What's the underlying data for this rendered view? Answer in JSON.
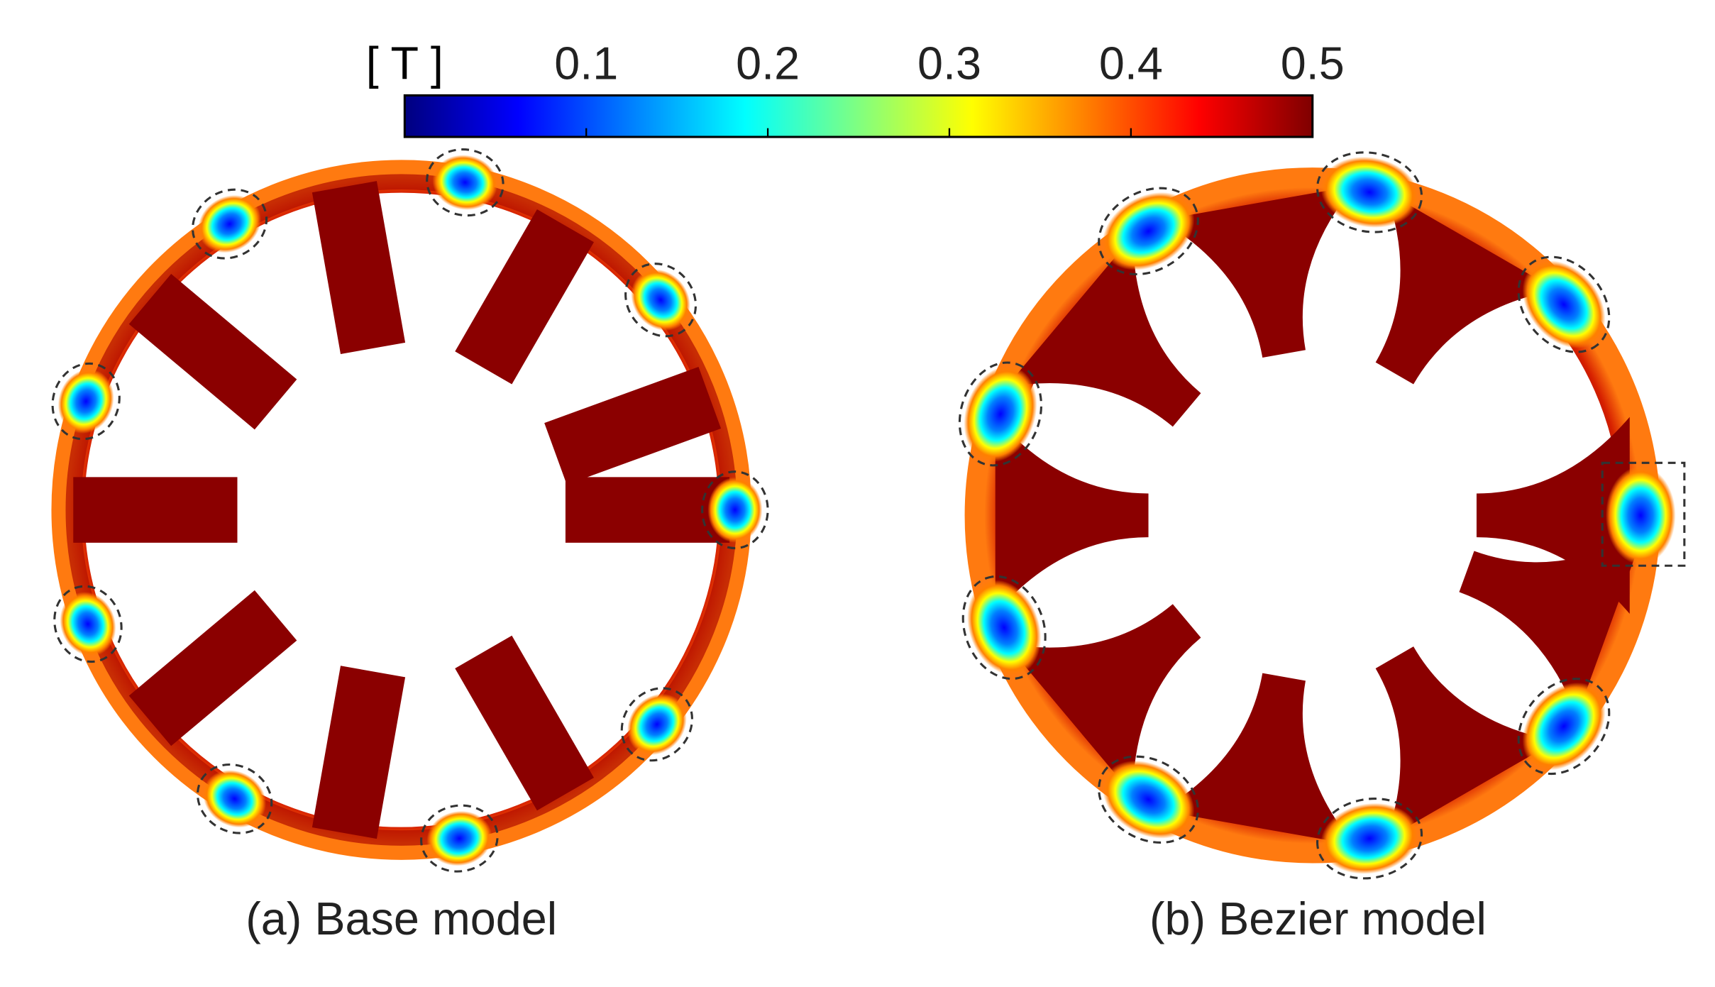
{
  "colorbar": {
    "unit": "[ T ]",
    "range": [
      0,
      0.5
    ],
    "ticks": [
      0.1,
      0.2,
      0.3,
      0.4,
      0.5
    ],
    "colors": [
      "#00007f",
      "#0000ff",
      "#0080ff",
      "#00ffff",
      "#80ff80",
      "#ffff00",
      "#ff8000",
      "#ff0000",
      "#7f0000"
    ]
  },
  "panels": [
    {
      "caption": "(a) Base model"
    },
    {
      "caption": "(b) Bezier model"
    }
  ]
}
